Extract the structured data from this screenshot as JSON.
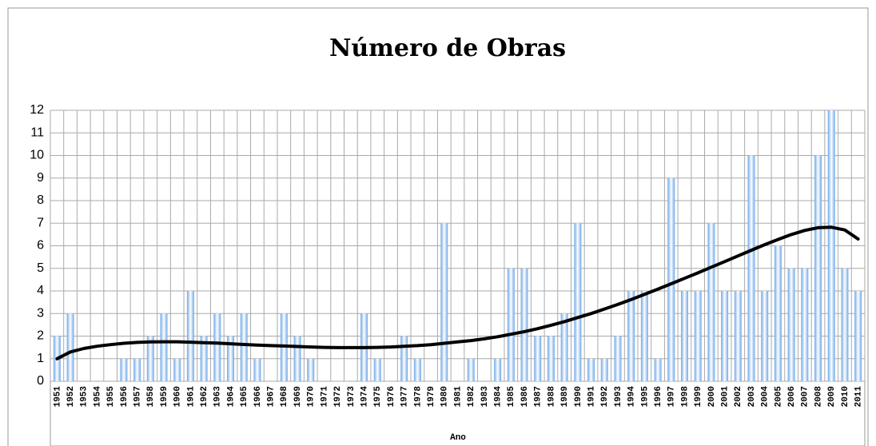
{
  "chart_data": {
    "type": "bar",
    "title": "Número de Obras",
    "x_label": "Ano",
    "categories": [
      "1951",
      "1952",
      "1953",
      "1954",
      "1955",
      "1956",
      "1957",
      "1958",
      "1959",
      "1960",
      "1961",
      "1962",
      "1963",
      "1964",
      "1965",
      "1966",
      "1967",
      "1968",
      "1969",
      "1970",
      "1971",
      "1972",
      "1973",
      "1974",
      "1975",
      "1976",
      "1977",
      "1978",
      "1979",
      "1980",
      "1981",
      "1982",
      "1983",
      "1984",
      "1985",
      "1986",
      "1987",
      "1988",
      "1989",
      "1990",
      "1991",
      "1992",
      "1993",
      "1994",
      "1995",
      "1996",
      "1997",
      "1998",
      "1999",
      "2000",
      "2001",
      "2002",
      "2003",
      "2004",
      "2005",
      "2006",
      "2007",
      "2008",
      "2009",
      "2010",
      "2011"
    ],
    "series": [
      {
        "name": "Número de Obras",
        "color": "#6fa8e8",
        "values": [
          2,
          3,
          0,
          0,
          0,
          1,
          1,
          2,
          3,
          1,
          4,
          2,
          3,
          2,
          3,
          1,
          0,
          3,
          2,
          1,
          0,
          0,
          0,
          3,
          1,
          0,
          2,
          1,
          0,
          7,
          0,
          1,
          0,
          1,
          5,
          5,
          2,
          2,
          3,
          7,
          1,
          1,
          2,
          4,
          4,
          1,
          9,
          4,
          4,
          7,
          4,
          4,
          10,
          4,
          6,
          5,
          5,
          10,
          12,
          5,
          4
        ]
      },
      {
        "type": "line",
        "color": "#000000",
        "values": [
          1.0,
          1.3,
          1.45,
          1.55,
          1.62,
          1.68,
          1.72,
          1.74,
          1.75,
          1.75,
          1.73,
          1.71,
          1.69,
          1.66,
          1.63,
          1.6,
          1.58,
          1.56,
          1.54,
          1.52,
          1.5,
          1.49,
          1.49,
          1.49,
          1.5,
          1.52,
          1.55,
          1.58,
          1.62,
          1.68,
          1.74,
          1.8,
          1.88,
          1.97,
          2.08,
          2.2,
          2.33,
          2.48,
          2.64,
          2.82,
          3.0,
          3.2,
          3.4,
          3.62,
          3.85,
          4.08,
          4.32,
          4.56,
          4.8,
          5.05,
          5.3,
          5.55,
          5.8,
          6.05,
          6.28,
          6.5,
          6.68,
          6.8,
          6.82,
          6.7,
          6.3
        ]
      }
    ],
    "ylim": [
      0,
      12
    ],
    "yticks": [
      0,
      1,
      2,
      3,
      4,
      5,
      6,
      7,
      8,
      9,
      10,
      11,
      12
    ],
    "grid": true
  }
}
